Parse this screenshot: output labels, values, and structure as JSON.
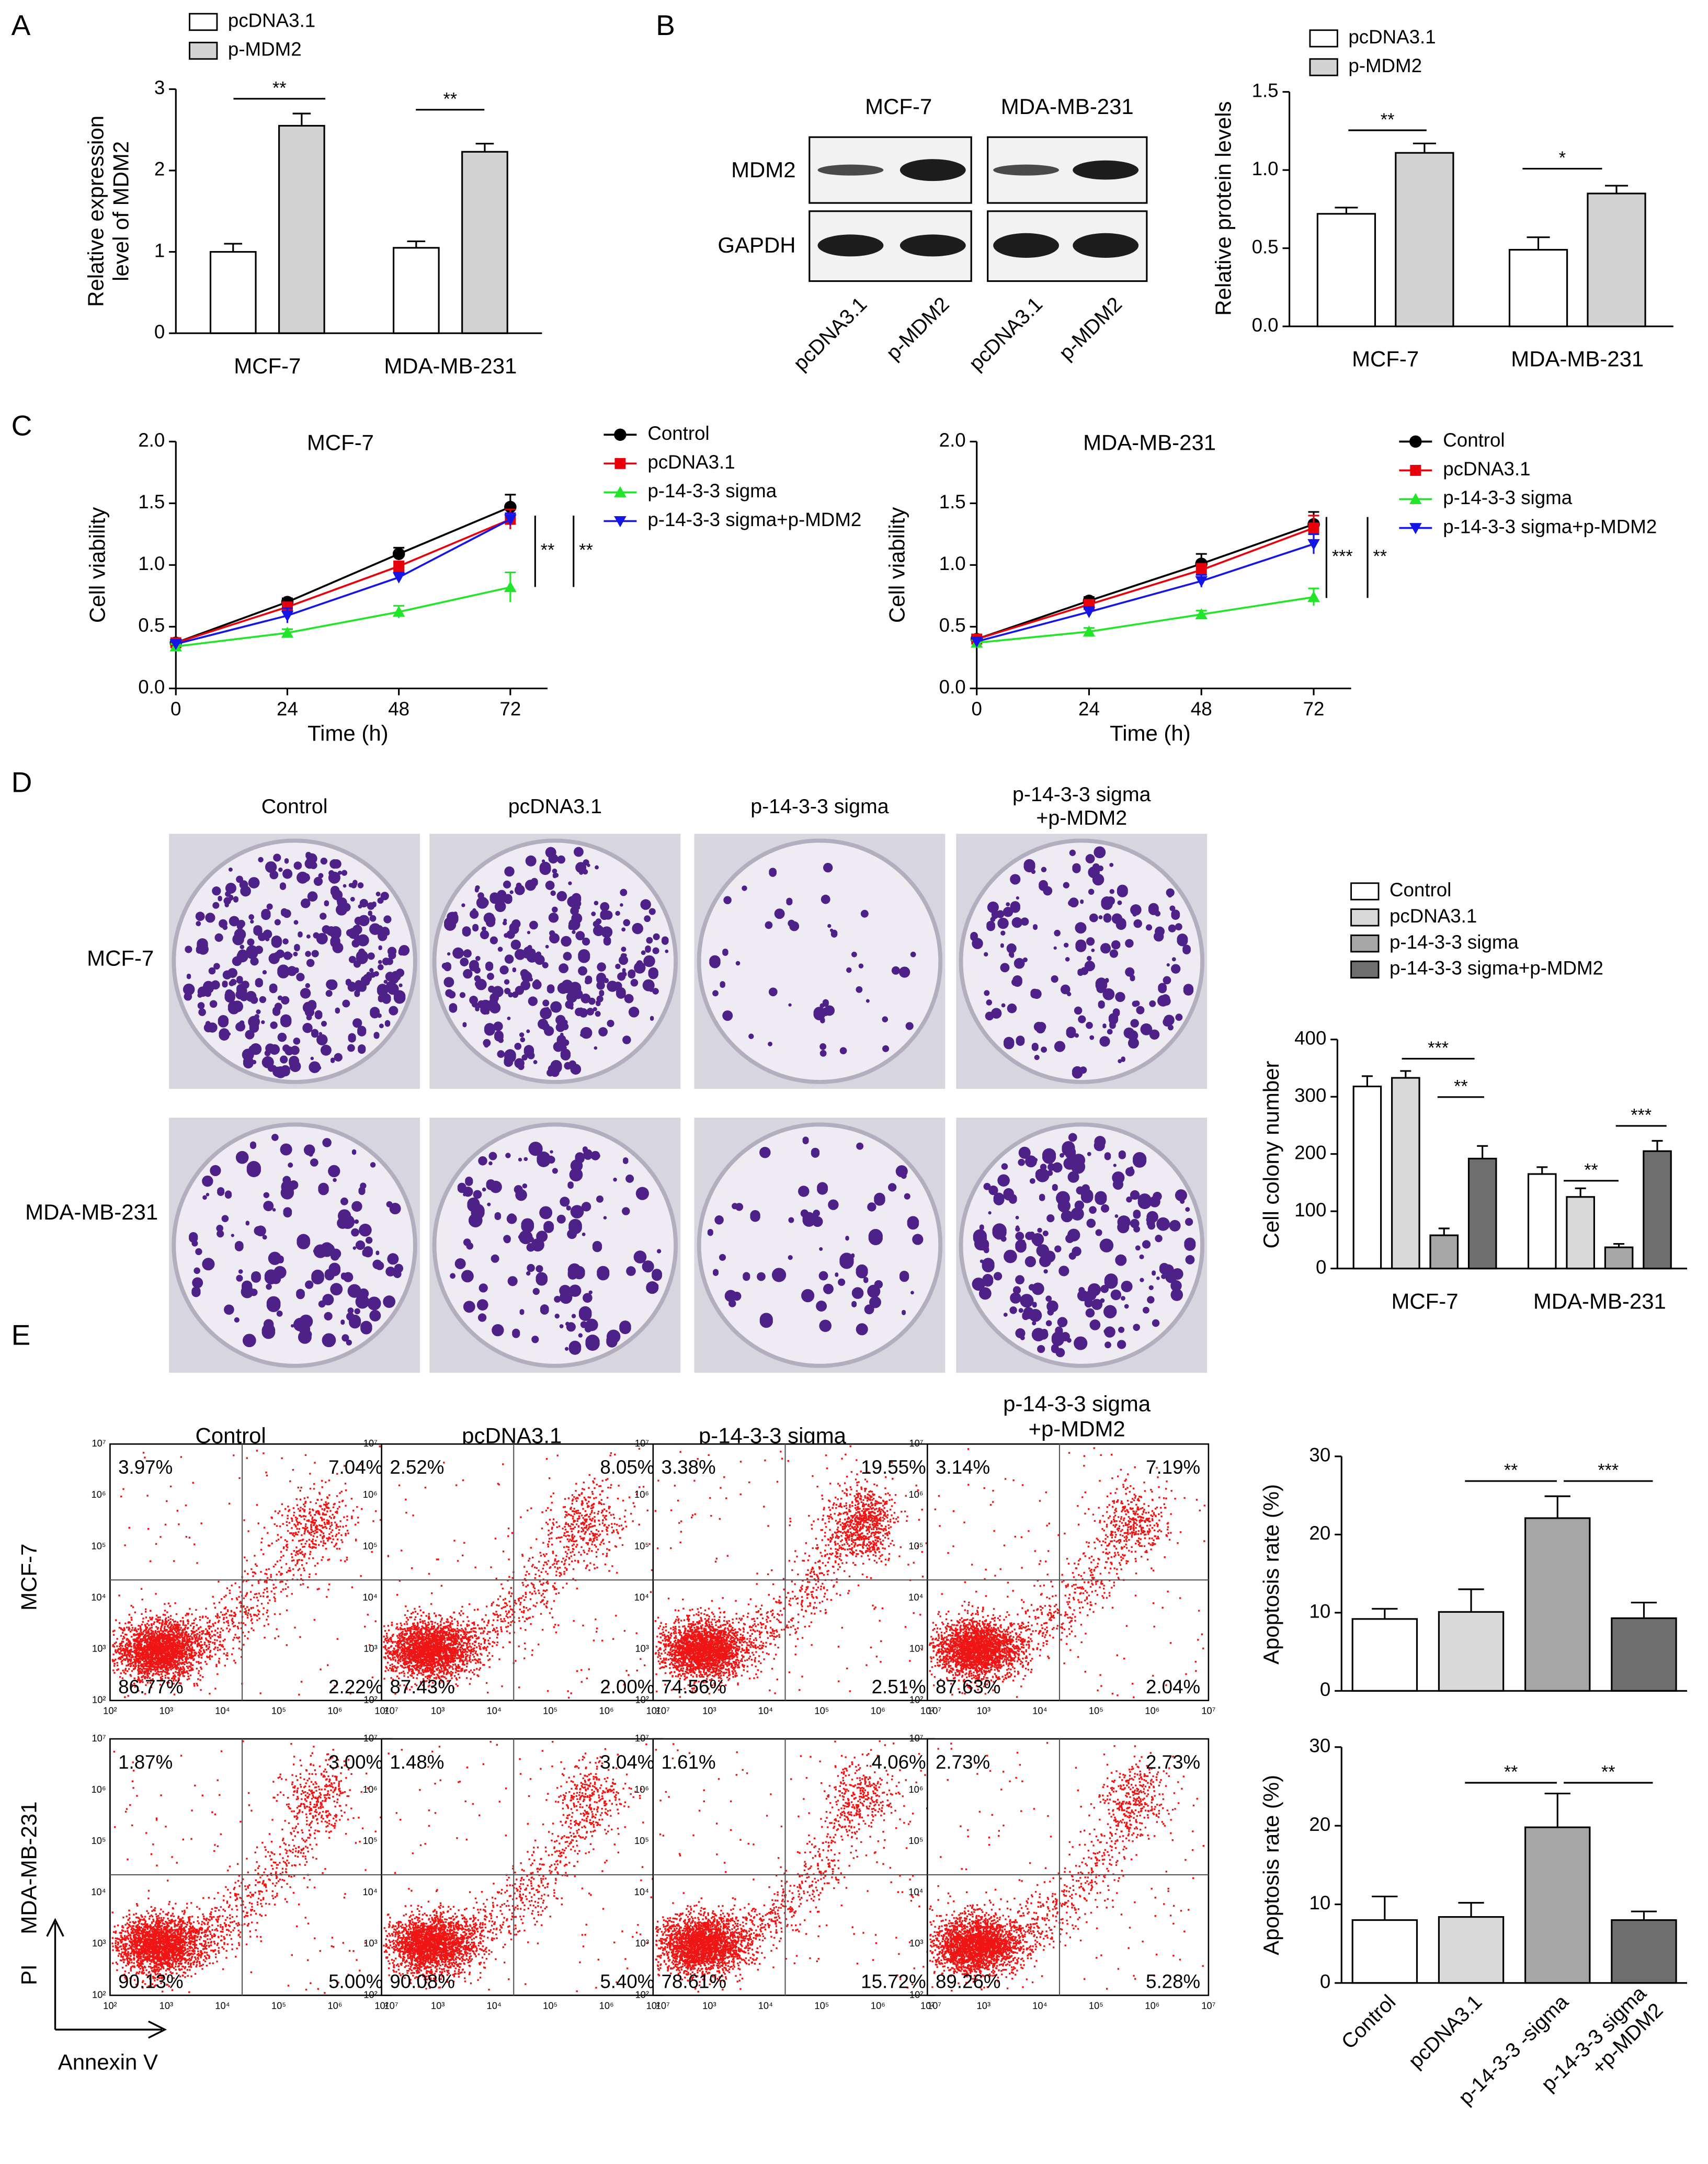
{
  "panel_labels": [
    "A",
    "B",
    "C",
    "D",
    "E"
  ],
  "blot": {
    "cell_lines": [
      "MCF-7",
      "MDA-MB-231"
    ],
    "proteins": [
      "MDM2",
      "GAPDH"
    ],
    "lanes": [
      "pcDNA3.1",
      "p-MDM2",
      "pcDNA3.1",
      "p-MDM2"
    ]
  },
  "colony": {
    "columns": [
      "Control",
      "pcDNA3.1",
      "p-14-3-3 sigma",
      "p-14-3-3 sigma\n+p-MDM2"
    ],
    "rows": [
      "MCF-7",
      "MDA-MB-231"
    ]
  },
  "flow": {
    "columns": [
      "Control",
      "pcDNA3.1",
      "p-14-3-3 sigma",
      "p-14-3-3 sigma\n+p-MDM2"
    ],
    "rows": [
      "MCF-7",
      "MDA-MB-231"
    ],
    "y_axis_label": "PI",
    "x_axis_label": "Annexin V",
    "tick_labels": [
      "10²",
      "10³",
      "10⁴",
      "10⁵",
      "10⁶",
      "10⁷"
    ],
    "quadrants": [
      [
        [
          "3.97%",
          "7.04%",
          "86.77%",
          "2.22%"
        ],
        [
          "2.52%",
          "8.05%",
          "87.43%",
          "2.00%"
        ],
        [
          "3.38%",
          "19.55%",
          "74.56%",
          "2.51%"
        ],
        [
          "3.14%",
          "7.19%",
          "87.63%",
          "2.04%"
        ]
      ],
      [
        [
          "1.87%",
          "3.00%",
          "90.13%",
          "5.00%"
        ],
        [
          "1.48%",
          "3.04%",
          "90.08%",
          "5.40%"
        ],
        [
          "1.61%",
          "4.06%",
          "78.61%",
          "15.72%"
        ],
        [
          "2.73%",
          "2.73%",
          "89.26%",
          "5.28%"
        ]
      ]
    ]
  },
  "chart_data": [
    {
      "type": "bar",
      "ylabel": "Relative expression\nlevel of MDM2",
      "categories": [
        "MCF-7",
        "MDA-MB-231"
      ],
      "series": [
        {
          "name": "pcDNA3.1",
          "color": "#ffffff",
          "values": [
            1.0,
            1.05
          ],
          "errors": [
            0.1,
            0.08
          ]
        },
        {
          "name": "p-MDM2",
          "color": "#d3d3d3",
          "values": [
            2.55,
            2.23
          ],
          "errors": [
            0.15,
            0.1
          ]
        }
      ],
      "ylim": [
        0,
        3
      ],
      "yticks": [
        0,
        1,
        2,
        3
      ],
      "annotations": [
        "**",
        "**"
      ]
    },
    {
      "type": "bar",
      "ylabel": "Relative protein levels",
      "categories": [
        "MCF-7",
        "MDA-MB-231"
      ],
      "series": [
        {
          "name": "pcDNA3.1",
          "color": "#ffffff",
          "values": [
            0.72,
            0.49
          ],
          "errors": [
            0.04,
            0.08
          ]
        },
        {
          "name": "p-MDM2",
          "color": "#d3d3d3",
          "values": [
            1.11,
            0.85
          ],
          "errors": [
            0.06,
            0.05
          ]
        }
      ],
      "ylim": [
        0,
        1.5
      ],
      "yticks": [
        {
          "value": 0,
          "label": "0.0"
        },
        {
          "value": 0.5,
          "label": "0.5"
        },
        {
          "value": 1,
          "label": "1.0"
        },
        {
          "value": 1.5,
          "label": "1.5"
        }
      ],
      "annotations": [
        "**",
        "*"
      ]
    },
    {
      "type": "line",
      "title": "MCF-7",
      "xlabel": "Time (h)",
      "ylabel": "Cell viability",
      "x": [
        0,
        24,
        48,
        72
      ],
      "series": [
        {
          "name": "Control",
          "color": "#000000",
          "marker": "circle",
          "values": [
            0.37,
            0.7,
            1.09,
            1.47
          ],
          "errors": [
            0.02,
            0.03,
            0.05,
            0.1
          ]
        },
        {
          "name": "pcDNA3.1",
          "color": "#e8000b",
          "marker": "square",
          "values": [
            0.37,
            0.66,
            0.99,
            1.37
          ],
          "errors": [
            0.02,
            0.03,
            0.04,
            0.08
          ]
        },
        {
          "name": "p-14-3-3 sigma",
          "color": "#22e52a",
          "marker": "triangle",
          "values": [
            0.34,
            0.45,
            0.62,
            0.82
          ],
          "errors": [
            0.02,
            0.03,
            0.05,
            0.12
          ]
        },
        {
          "name": "p-14-3-3 sigma+p-MDM2",
          "color": "#1515e6",
          "marker": "triangle-down",
          "values": [
            0.36,
            0.59,
            0.9,
            1.37
          ],
          "errors": [
            0.02,
            0.06,
            0.04,
            0.05
          ]
        }
      ],
      "xlim": [
        0,
        80
      ],
      "xticks": [
        0,
        24,
        48,
        72
      ],
      "ylim": [
        0,
        2
      ],
      "yticks": [
        {
          "value": 0,
          "label": "0.0"
        },
        {
          "value": 0.5,
          "label": "0.5"
        },
        {
          "value": 1,
          "label": "1.0"
        },
        {
          "value": 1.5,
          "label": "1.5"
        },
        {
          "value": 2,
          "label": "2.0"
        }
      ],
      "annotations": [
        "**",
        "**"
      ]
    },
    {
      "type": "line",
      "title": "MDA-MB-231",
      "xlabel": "Time (h)",
      "ylabel": "Cell viability",
      "x": [
        0,
        24,
        48,
        72
      ],
      "series": [
        {
          "name": "Control",
          "color": "#000000",
          "marker": "circle",
          "values": [
            0.4,
            0.71,
            1.01,
            1.33
          ],
          "errors": [
            0.02,
            0.03,
            0.08,
            0.1
          ]
        },
        {
          "name": "pcDNA3.1",
          "color": "#e8000b",
          "marker": "square",
          "values": [
            0.4,
            0.68,
            0.96,
            1.3
          ],
          "errors": [
            0.02,
            0.03,
            0.05,
            0.1
          ]
        },
        {
          "name": "p-14-3-3 sigma",
          "color": "#22e52a",
          "marker": "triangle",
          "values": [
            0.37,
            0.46,
            0.6,
            0.74
          ],
          "errors": [
            0.02,
            0.03,
            0.03,
            0.07
          ]
        },
        {
          "name": "p-14-3-3 sigma+p-MDM2",
          "color": "#1515e6",
          "marker": "triangle-down",
          "values": [
            0.38,
            0.62,
            0.87,
            1.17
          ],
          "errors": [
            0.03,
            0.04,
            0.05,
            0.08
          ]
        }
      ],
      "xlim": [
        0,
        80
      ],
      "xticks": [
        0,
        24,
        48,
        72
      ],
      "ylim": [
        0,
        2
      ],
      "yticks": [
        {
          "value": 0,
          "label": "0.0"
        },
        {
          "value": 0.5,
          "label": "0.5"
        },
        {
          "value": 1,
          "label": "1.0"
        },
        {
          "value": 1.5,
          "label": "1.5"
        },
        {
          "value": 2,
          "label": "2.0"
        }
      ],
      "annotations": [
        "***",
        "**"
      ]
    },
    {
      "type": "bar",
      "ylabel": "Cell colony number",
      "categories": [
        "MCF-7",
        "MDA-MB-231"
      ],
      "series": [
        {
          "name": "Control",
          "color": "#ffffff",
          "values": [
            318,
            165
          ],
          "errors": [
            18,
            12
          ]
        },
        {
          "name": "pcDNA3.1",
          "color": "#d9d9d9",
          "values": [
            333,
            125
          ],
          "errors": [
            12,
            15
          ]
        },
        {
          "name": "p-14-3-3 sigma",
          "color": "#a6a6a6",
          "values": [
            58,
            37
          ],
          "errors": [
            12,
            6
          ]
        },
        {
          "name": "p-14-3-3 sigma+p-MDM2",
          "color": "#6e6e6e",
          "values": [
            192,
            205
          ],
          "errors": [
            22,
            18
          ]
        }
      ],
      "ylim": [
        0,
        400
      ],
      "yticks": [
        0,
        100,
        200,
        300,
        400
      ],
      "annotations": [
        "***",
        "**",
        "**",
        "***"
      ]
    },
    {
      "type": "bar",
      "ylabel": "Apoptosis rate (%)",
      "values": [
        9.2,
        10.1,
        22.1,
        9.3
      ],
      "errors": [
        1.3,
        2.9,
        2.8,
        2.0
      ],
      "colors": [
        "#ffffff",
        "#d9d9d9",
        "#a6a6a6",
        "#6e6e6e"
      ],
      "ylim": [
        0,
        30
      ],
      "yticks": [
        0,
        10,
        20,
        30
      ],
      "annotations": [
        "**",
        "***"
      ]
    },
    {
      "type": "bar",
      "ylabel": "Apoptosis rate (%)",
      "categories": [
        "Control",
        "pcDNA3.1",
        "p-14-3-3 -sigma",
        "p-14-3-3 sigma\n+p-MDM2"
      ],
      "values": [
        8.0,
        8.4,
        19.8,
        8.0
      ],
      "errors": [
        3.0,
        1.8,
        4.3,
        1.1
      ],
      "colors": [
        "#ffffff",
        "#d9d9d9",
        "#a6a6a6",
        "#6e6e6e"
      ],
      "ylim": [
        0,
        30
      ],
      "yticks": [
        0,
        10,
        20,
        30
      ],
      "annotations": [
        "**",
        "**"
      ]
    }
  ]
}
